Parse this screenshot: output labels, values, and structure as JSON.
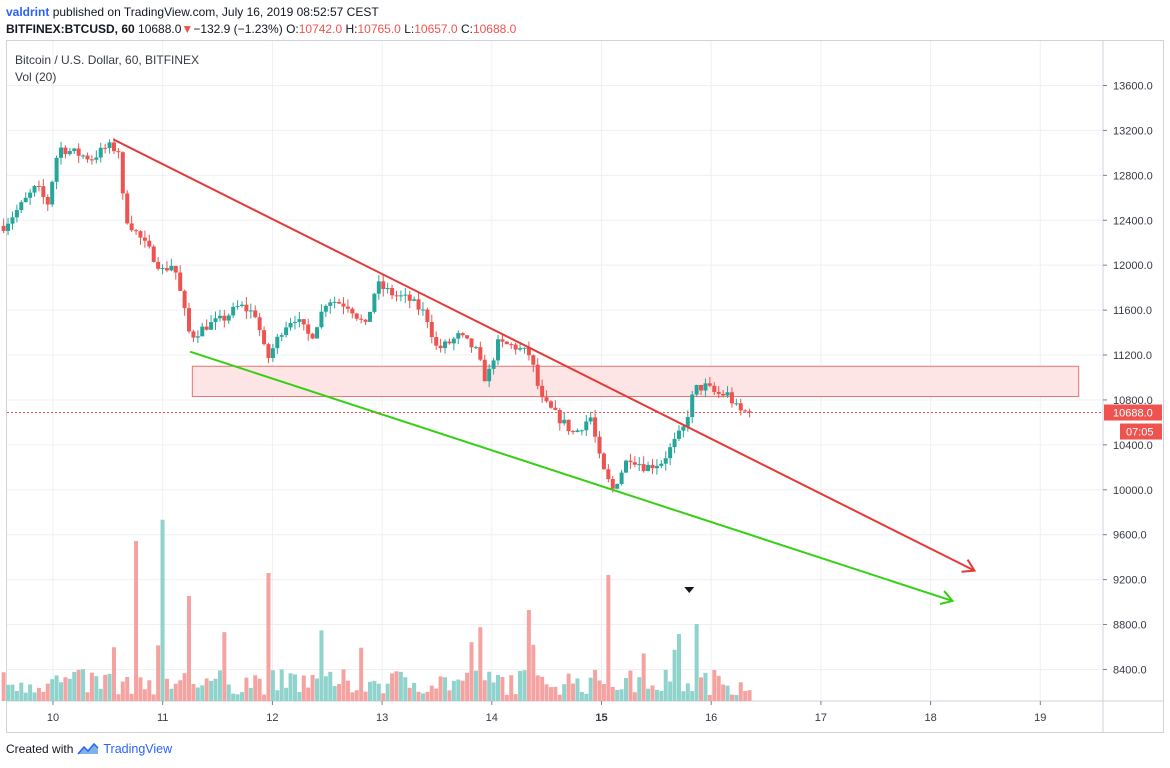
{
  "header": {
    "author": "valdrint",
    "published_text": "published on TradingView.com, July 16, 2019 08:52:57 CEST",
    "symbol": "BITFINEX:BTCUSD, 60",
    "last": "10688.0",
    "change_arrow": "▼",
    "change": "−132.9 (−1.23%)",
    "open_label": "O:",
    "open": "10742.0",
    "high_label": "H:",
    "high": "10765.0",
    "low_label": "L:",
    "low": "10657.0",
    "close_label": "C:",
    "close": "10688.0"
  },
  "legend": {
    "series_name": "Bitcoin / U.S. Dollar, 60, BITFINEX",
    "indicator": "Vol (20)"
  },
  "footer": {
    "created_with": "Created with",
    "brand": "TradingView"
  },
  "chart_data": {
    "type": "candlestick",
    "title": "Bitcoin / U.S. Dollar, 60, BITFINEX",
    "y_ticks": [
      13600,
      13200,
      12800,
      12400,
      12000,
      11600,
      11200,
      10800,
      10400,
      10000,
      9600,
      9200,
      8800,
      8400
    ],
    "y_tick_labels": [
      "13600.0",
      "13200.0",
      "12800.0",
      "12400.0",
      "12000.0",
      "11600.0",
      "11200.0",
      "10800.0",
      "10400.0",
      "10000.0",
      "9600.0",
      "9200.0",
      "8800.0",
      "8400.0"
    ],
    "x_ticks": [
      10,
      11,
      12,
      13,
      14,
      15,
      16,
      17,
      18,
      19
    ],
    "x_tick_labels": [
      "10",
      "11",
      "12",
      "13",
      "14",
      "15",
      "16",
      "17",
      "18",
      "19"
    ],
    "current_price": 10688.0,
    "current_price_label": "10688.0",
    "countdown_label": "07:05",
    "colors": {
      "up": "#26a69a",
      "down": "#ef5350",
      "vol_up": "#8fd3cc",
      "vol_down": "#f5a3a1",
      "resistance": "#e53935",
      "support": "#35d014",
      "zone_fill": "#fde5e5",
      "zone_stroke": "#e57373"
    },
    "anchors": [
      [
        9.55,
        12350
      ],
      [
        9.7,
        12520
      ],
      [
        9.85,
        12700
      ],
      [
        9.95,
        12540
      ],
      [
        10.05,
        13050
      ],
      [
        10.2,
        13000
      ],
      [
        10.35,
        12950
      ],
      [
        10.5,
        13060
      ],
      [
        10.6,
        13020
      ],
      [
        10.65,
        12450
      ],
      [
        10.75,
        12300
      ],
      [
        10.9,
        12100
      ],
      [
        11.0,
        11950
      ],
      [
        11.1,
        12020
      ],
      [
        11.25,
        11360
      ],
      [
        11.4,
        11460
      ],
      [
        11.55,
        11520
      ],
      [
        11.7,
        11640
      ],
      [
        11.85,
        11560
      ],
      [
        11.95,
        11150
      ],
      [
        12.1,
        11450
      ],
      [
        12.2,
        11540
      ],
      [
        12.35,
        11350
      ],
      [
        12.5,
        11700
      ],
      [
        12.7,
        11640
      ],
      [
        12.85,
        11450
      ],
      [
        12.95,
        11830
      ],
      [
        13.1,
        11740
      ],
      [
        13.25,
        11690
      ],
      [
        13.4,
        11560
      ],
      [
        13.5,
        11250
      ],
      [
        13.6,
        11300
      ],
      [
        13.7,
        11370
      ],
      [
        13.85,
        11250
      ],
      [
        13.95,
        10960
      ],
      [
        14.05,
        11300
      ],
      [
        14.2,
        11280
      ],
      [
        14.35,
        11200
      ],
      [
        14.45,
        10800
      ],
      [
        14.6,
        10650
      ],
      [
        14.75,
        10500
      ],
      [
        14.9,
        10650
      ],
      [
        15.0,
        10200
      ],
      [
        15.1,
        10000
      ],
      [
        15.25,
        10300
      ],
      [
        15.4,
        10200
      ],
      [
        15.55,
        10250
      ],
      [
        15.65,
        10400
      ],
      [
        15.75,
        10550
      ],
      [
        15.85,
        10900
      ],
      [
        15.95,
        10920
      ],
      [
        16.05,
        10850
      ],
      [
        16.15,
        10850
      ],
      [
        16.25,
        10700
      ],
      [
        16.35,
        10688
      ]
    ],
    "candle_count": 170,
    "volume_spikes": [
      {
        "day": 10.75,
        "height": 160
      },
      {
        "day": 11.0,
        "height": 142
      },
      {
        "day": 11.25,
        "height": 105
      },
      {
        "day": 11.95,
        "height": 128
      },
      {
        "day": 14.35,
        "height": 91
      },
      {
        "day": 15.05,
        "height": 126
      },
      {
        "day": 15.85,
        "height": 77
      }
    ],
    "annotations": {
      "resistance_line": {
        "from": [
          10.55,
          13120
        ],
        "to": [
          18.4,
          9280
        ]
      },
      "support_line": {
        "from": [
          11.25,
          11230
        ],
        "to": [
          18.2,
          9010
        ]
      },
      "zone": {
        "day_from": 11.27,
        "day_to": 19.35,
        "price_low": 10830,
        "price_high": 11100
      },
      "marker_arrow": {
        "day": 15.8,
        "label": "▼"
      }
    }
  }
}
